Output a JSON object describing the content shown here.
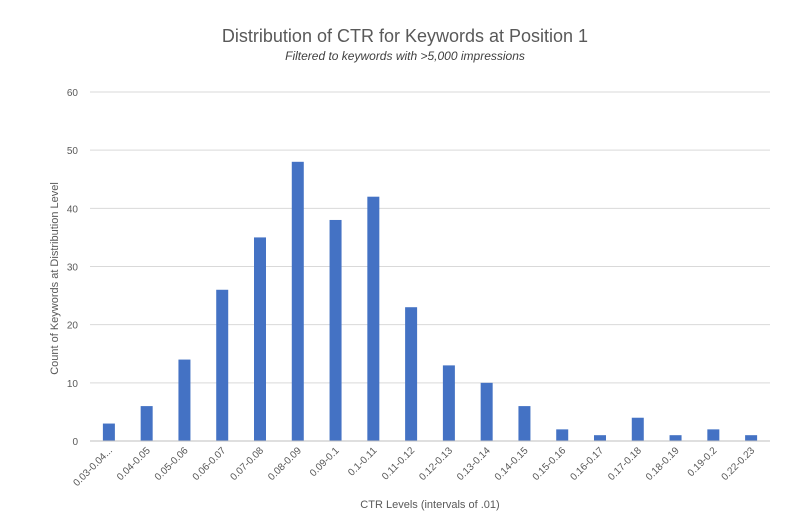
{
  "chart_data": {
    "type": "bar",
    "title": "Distribution of CTR for Keywords at Position 1",
    "subtitle": "Filtered to keywords with >5,000 impressions",
    "xlabel": "CTR Levels (intervals of .01)",
    "ylabel": "Count of Keywords at Distribution Level",
    "ylim": [
      0,
      60
    ],
    "yticks": [
      0,
      10,
      20,
      30,
      40,
      50,
      60
    ],
    "grid": true,
    "categories": [
      "0.03-0.04...",
      "0.04-0.05",
      "0.05-0.06",
      "0.06-0.07",
      "0.07-0.08",
      "0.08-0.09",
      "0.09-0.1",
      "0.1-0.11",
      "0.11-0.12",
      "0.12-0.13",
      "0.13-0.14",
      "0.14-0.15",
      "0.15-0.16",
      "0.16-0.17",
      "0.17-0.18",
      "0.18-0.19",
      "0.19-0.2",
      "0.22-0.23"
    ],
    "values": [
      3,
      6,
      14,
      26,
      35,
      48,
      38,
      42,
      23,
      13,
      10,
      6,
      2,
      1,
      4,
      1,
      2,
      1
    ],
    "bar_color": "#4472C4",
    "grid_color": "#D9D9D9",
    "axis_color": "#BFBFBF"
  }
}
